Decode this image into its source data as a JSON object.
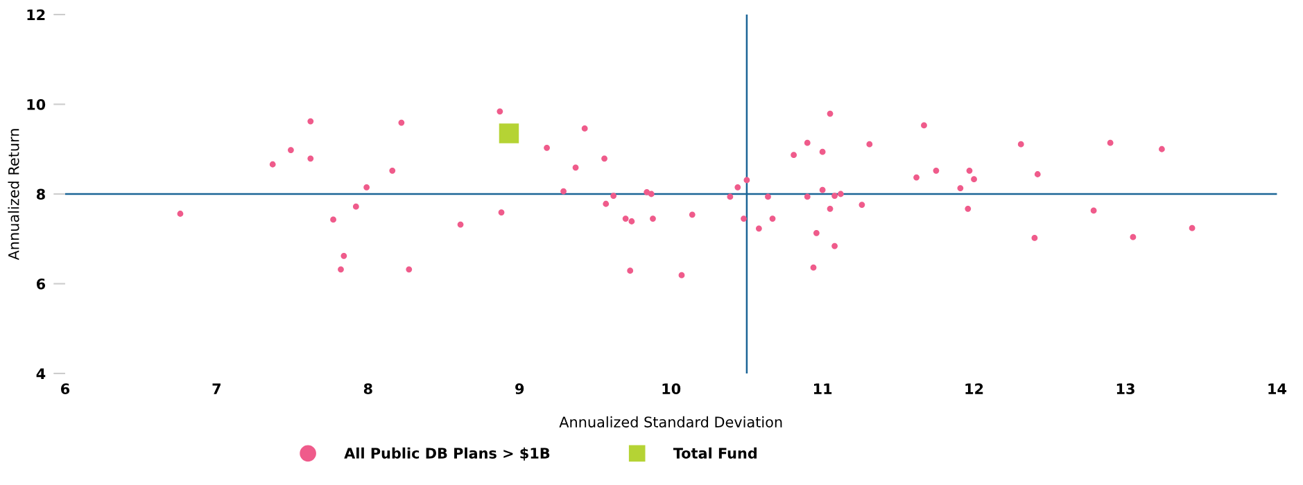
{
  "chart_data": {
    "type": "scatter",
    "xlabel": "Annualized Standard Deviation",
    "ylabel": "Annualized Return",
    "xlim": [
      6,
      14
    ],
    "ylim": [
      4,
      12
    ],
    "xticks": [
      6,
      7,
      8,
      9,
      10,
      11,
      12,
      13,
      14
    ],
    "yticks": [
      4,
      6,
      8,
      10,
      12
    ],
    "grid": false,
    "legend": "bottom",
    "ref_lines": [
      {
        "axis": "y",
        "value": 8,
        "color": "#1a6496"
      },
      {
        "axis": "x",
        "value": 10.5,
        "color": "#1a6496"
      }
    ],
    "series": [
      {
        "name": "All Public DB Plans > $1B",
        "color": "#ef5b8b",
        "marker": "circle",
        "x": [
          6.76,
          7.37,
          7.49,
          7.62,
          7.62,
          7.77,
          7.84,
          7.82,
          7.92,
          7.99,
          8.16,
          8.22,
          8.27,
          8.61,
          8.87,
          8.88,
          9.18,
          9.29,
          9.37,
          9.43,
          9.56,
          9.57,
          9.62,
          9.7,
          9.74,
          9.73,
          9.84,
          9.87,
          9.88,
          10.07,
          10.14,
          10.39,
          10.44,
          10.5,
          10.48,
          10.58,
          10.64,
          10.67,
          10.81,
          10.9,
          10.9,
          10.94,
          10.96,
          11.0,
          11.0,
          11.05,
          11.05,
          11.08,
          11.08,
          11.12,
          11.26,
          11.31,
          11.62,
          11.67,
          11.75,
          11.91,
          11.96,
          11.97,
          12.0,
          12.31,
          12.4,
          12.42,
          12.79,
          12.9,
          13.05,
          13.24,
          13.44
        ],
        "values": [
          7.56,
          8.66,
          8.98,
          9.62,
          8.79,
          7.43,
          6.62,
          6.32,
          7.72,
          8.15,
          8.52,
          9.59,
          6.32,
          7.32,
          9.84,
          7.59,
          9.03,
          8.06,
          8.59,
          9.46,
          8.79,
          7.78,
          7.96,
          7.45,
          7.39,
          6.29,
          8.04,
          8.0,
          7.45,
          6.19,
          7.54,
          7.94,
          8.15,
          8.31,
          7.45,
          7.23,
          7.94,
          7.45,
          8.87,
          9.14,
          7.94,
          6.36,
          7.13,
          8.94,
          8.09,
          7.67,
          9.79,
          7.96,
          6.84,
          8.0,
          7.76,
          9.11,
          8.37,
          9.53,
          8.52,
          8.13,
          7.67,
          8.52,
          8.33,
          9.11,
          7.02,
          8.44,
          7.63,
          9.14,
          7.04,
          9.0,
          7.24
        ]
      },
      {
        "name": "Total Fund",
        "color": "#b5d334",
        "marker": "square",
        "x": [
          8.93
        ],
        "values": [
          9.35
        ]
      }
    ]
  }
}
